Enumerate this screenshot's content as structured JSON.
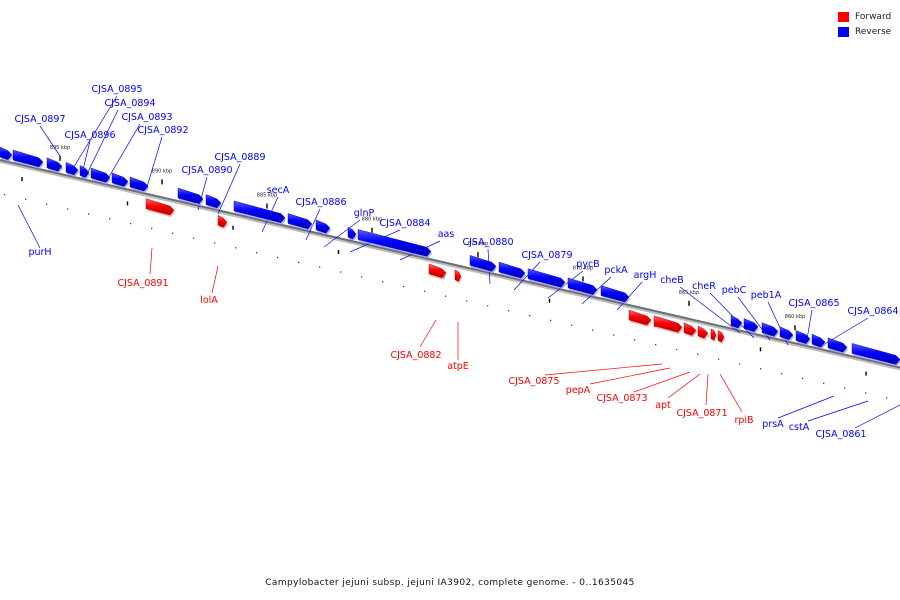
{
  "legend": {
    "items": [
      {
        "label": "Forward",
        "color": "#ff0000"
      },
      {
        "label": "Reverse",
        "color": "#0000ff"
      }
    ]
  },
  "caption": "Campylobacter jejuni subsp. jejuni IA3902, complete genome. - 0..1635045",
  "axis_labels": [
    "895 kbp",
    "890 kbp",
    "885 kbp",
    "880 kbp",
    "875 kbp",
    "870 kbp",
    "865 kbp",
    "860 kbp"
  ],
  "genes": [
    {
      "name": "CJSA_0897",
      "strand": "reverse"
    },
    {
      "name": "CJSA_0895",
      "strand": "reverse"
    },
    {
      "name": "CJSA_0894",
      "strand": "reverse"
    },
    {
      "name": "CJSA_0896",
      "strand": "reverse"
    },
    {
      "name": "CJSA_0893",
      "strand": "reverse"
    },
    {
      "name": "CJSA_0892",
      "strand": "reverse"
    },
    {
      "name": "purH",
      "strand": "reverse"
    },
    {
      "name": "CJSA_0889",
      "strand": "reverse"
    },
    {
      "name": "CJSA_0890",
      "strand": "reverse"
    },
    {
      "name": "CJSA_0891",
      "strand": "forward"
    },
    {
      "name": "lolA",
      "strand": "forward"
    },
    {
      "name": "secA",
      "strand": "reverse"
    },
    {
      "name": "CJSA_0886",
      "strand": "reverse"
    },
    {
      "name": "glnP",
      "strand": "reverse"
    },
    {
      "name": "CJSA_0884",
      "strand": "reverse"
    },
    {
      "name": "aas",
      "strand": "reverse"
    },
    {
      "name": "CJSA_0882",
      "strand": "forward"
    },
    {
      "name": "atpE",
      "strand": "forward"
    },
    {
      "name": "CJSA_0880",
      "strand": "reverse"
    },
    {
      "name": "CJSA_0879",
      "strand": "reverse"
    },
    {
      "name": "pycB",
      "strand": "reverse"
    },
    {
      "name": "pckA",
      "strand": "reverse"
    },
    {
      "name": "argH",
      "strand": "reverse"
    },
    {
      "name": "CJSA_0875",
      "strand": "forward"
    },
    {
      "name": "pepA",
      "strand": "forward"
    },
    {
      "name": "CJSA_0873",
      "strand": "forward"
    },
    {
      "name": "apt",
      "strand": "forward"
    },
    {
      "name": "CJSA_0871",
      "strand": "forward"
    },
    {
      "name": "rpiB",
      "strand": "forward"
    },
    {
      "name": "cheB",
      "strand": "reverse"
    },
    {
      "name": "cheR",
      "strand": "reverse"
    },
    {
      "name": "pebC",
      "strand": "reverse"
    },
    {
      "name": "peb1A",
      "strand": "reverse"
    },
    {
      "name": "CJSA_0865",
      "strand": "reverse"
    },
    {
      "name": "CJSA_0864",
      "strand": "reverse"
    },
    {
      "name": "prsA",
      "strand": "reverse"
    },
    {
      "name": "cstA",
      "strand": "reverse"
    },
    {
      "name": "CJSA_0861",
      "strand": "reverse"
    }
  ]
}
